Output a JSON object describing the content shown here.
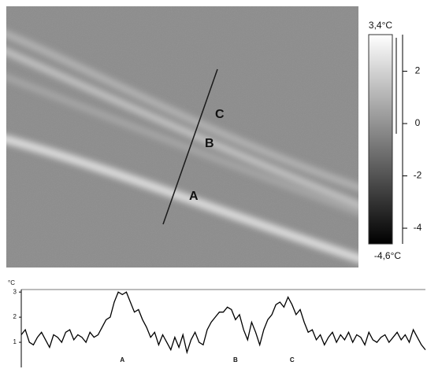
{
  "thermal_image": {
    "labels": [
      "A",
      "B",
      "C"
    ],
    "colorbar": {
      "max_label": "3,4°C",
      "min_label": "-4,6°C",
      "lim": [
        -4.6,
        3.4
      ],
      "ticks": [
        2,
        0,
        -2,
        -4
      ]
    }
  },
  "chart_data": {
    "type": "line",
    "y_label": "°C",
    "color": "#000000",
    "x": [
      0,
      1,
      2,
      3,
      4,
      5,
      6,
      7,
      8,
      9,
      10,
      11,
      12,
      13,
      14,
      15,
      16,
      17,
      18,
      19,
      20,
      21,
      22,
      23,
      24,
      25,
      26,
      27,
      28,
      29,
      30,
      31,
      32,
      33,
      34,
      35,
      36,
      37,
      38,
      39,
      40,
      41,
      42,
      43,
      44,
      45,
      46,
      47,
      48,
      49,
      50,
      51,
      52,
      53,
      54,
      55,
      56,
      57,
      58,
      59,
      60,
      61,
      62,
      63,
      64,
      65,
      66,
      67,
      68,
      69,
      70,
      71,
      72,
      73,
      74,
      75,
      76,
      77,
      78,
      79,
      80,
      81,
      82,
      83,
      84,
      85,
      86,
      87,
      88,
      89,
      90,
      91,
      92,
      93,
      94,
      95,
      96,
      97,
      98,
      99,
      100
    ],
    "values": [
      1.3,
      1.5,
      1.0,
      0.9,
      1.2,
      1.4,
      1.1,
      0.8,
      1.3,
      1.2,
      1.0,
      1.4,
      1.5,
      1.1,
      1.3,
      1.2,
      1.0,
      1.4,
      1.2,
      1.3,
      1.6,
      1.9,
      2.0,
      2.6,
      3.0,
      2.9,
      3.0,
      2.6,
      2.2,
      2.3,
      1.9,
      1.6,
      1.2,
      1.4,
      0.9,
      1.3,
      1.0,
      0.7,
      1.2,
      0.8,
      1.3,
      0.6,
      1.1,
      1.4,
      1.0,
      0.9,
      1.5,
      1.8,
      2.0,
      2.2,
      2.2,
      2.4,
      2.3,
      1.9,
      2.1,
      1.5,
      1.1,
      1.8,
      1.4,
      0.9,
      1.5,
      1.9,
      2.1,
      2.5,
      2.6,
      2.4,
      2.8,
      2.5,
      2.1,
      2.3,
      1.8,
      1.4,
      1.5,
      1.1,
      1.3,
      0.9,
      1.2,
      1.4,
      1.0,
      1.3,
      1.1,
      1.4,
      1.0,
      1.3,
      1.2,
      0.9,
      1.4,
      1.1,
      1.0,
      1.2,
      1.3,
      1.0,
      1.2,
      1.4,
      1.1,
      1.3,
      1.0,
      1.5,
      1.2,
      0.9,
      0.7
    ],
    "xlim": [
      0,
      100
    ],
    "ylim": [
      0,
      3.1
    ],
    "yticks": [
      1,
      2,
      3
    ],
    "annotations": [
      {
        "text": "A",
        "x": 25
      },
      {
        "text": "B",
        "x": 53
      },
      {
        "text": "C",
        "x": 67
      }
    ]
  }
}
